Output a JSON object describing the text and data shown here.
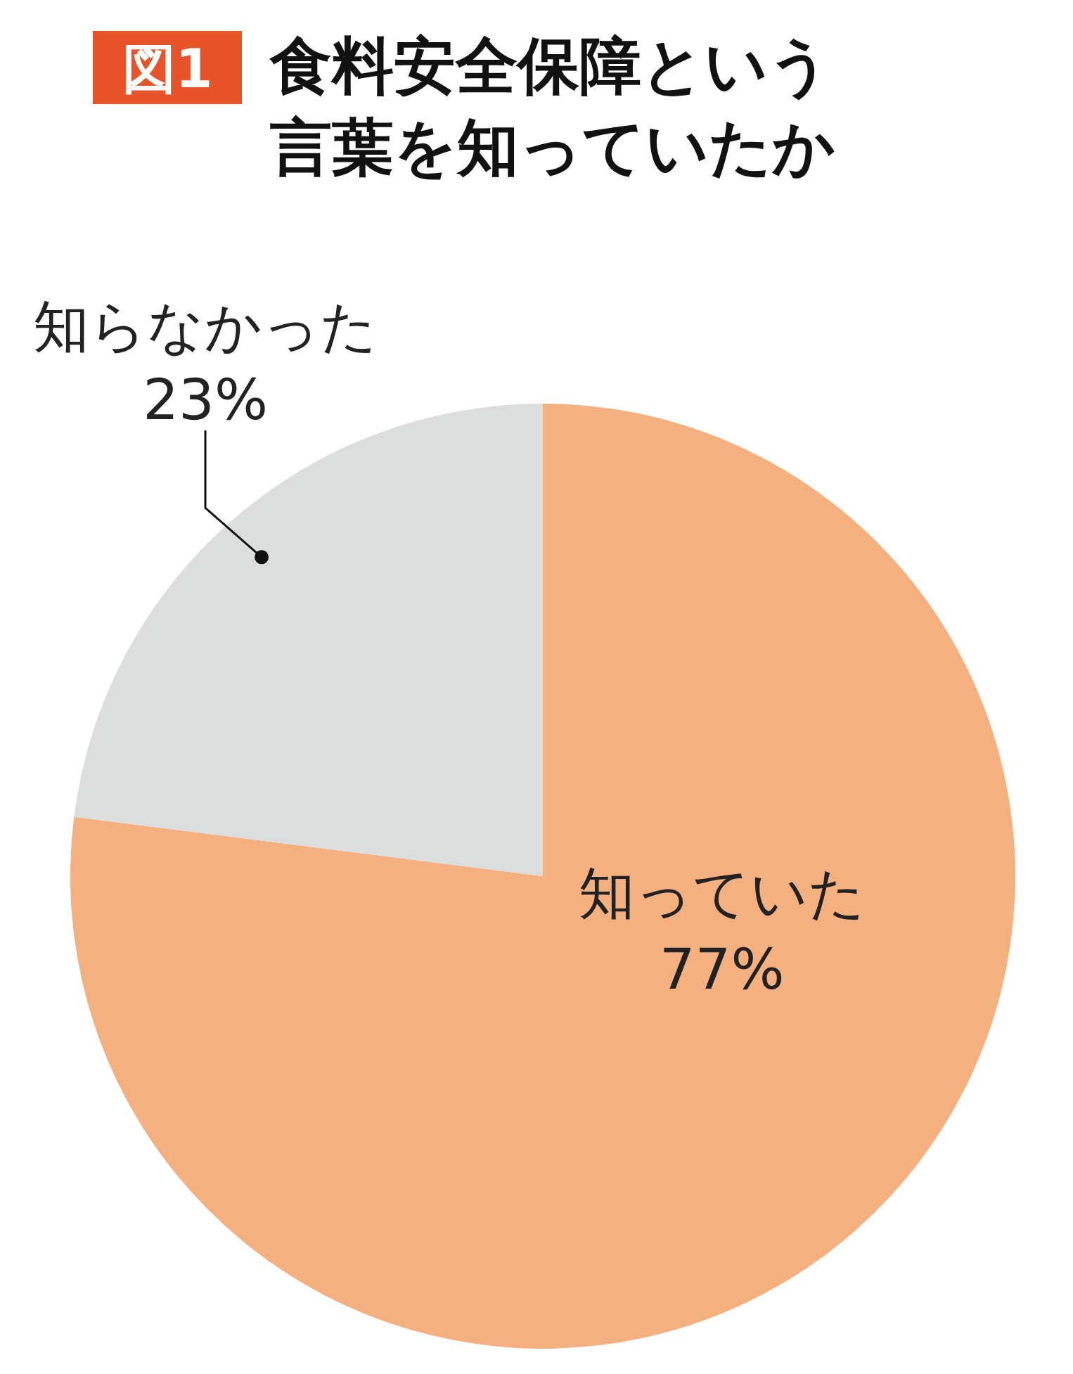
{
  "chart_data": {
    "type": "pie",
    "title": "食料安全保障という言葉を知っていたか",
    "annotations": [
      "図1"
    ],
    "categories": [
      "知っていた",
      "知らなかった"
    ],
    "values": [
      77,
      23
    ],
    "colors": [
      "#f5b07f",
      "#dcdddd"
    ],
    "value_labels": [
      "77%",
      "23%"
    ]
  }
}
